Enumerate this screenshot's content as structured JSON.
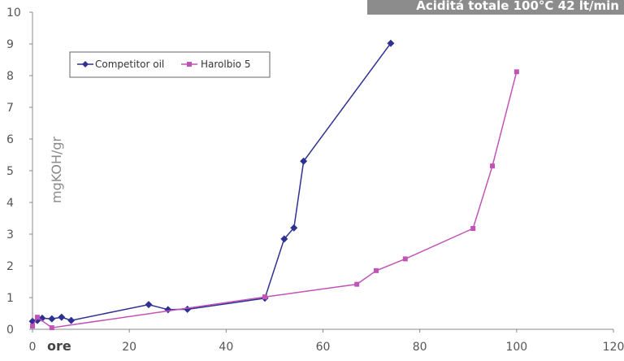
{
  "chart_data": {
    "type": "line",
    "title": "Aciditá totale 100°C 42 lt/min",
    "xlabel": "ore",
    "ylabel": "mgKOH/gr",
    "xlim": [
      0,
      120
    ],
    "ylim": [
      0,
      10
    ],
    "x_ticks": [
      0,
      20,
      40,
      60,
      80,
      100,
      120
    ],
    "y_ticks": [
      0,
      1,
      2,
      3,
      4,
      5,
      6,
      7,
      8,
      9,
      10
    ],
    "grid": false,
    "legend_position": "top-left",
    "series": [
      {
        "name": "Competitor oil",
        "color": "#2e3192",
        "marker": "diamond",
        "points": [
          [
            0,
            0.25
          ],
          [
            1,
            0.28
          ],
          [
            2,
            0.35
          ],
          [
            4,
            0.33
          ],
          [
            6,
            0.38
          ],
          [
            8,
            0.28
          ],
          [
            24,
            0.78
          ],
          [
            28,
            0.62
          ],
          [
            32,
            0.63
          ],
          [
            48,
            0.98
          ],
          [
            52,
            2.85
          ],
          [
            54,
            3.2
          ],
          [
            56,
            5.3
          ],
          [
            74,
            9.02
          ]
        ]
      },
      {
        "name": "Harolbio 5",
        "color": "#c054b6",
        "marker": "square",
        "points": [
          [
            0,
            0.1
          ],
          [
            1,
            0.38
          ],
          [
            4,
            0.05
          ],
          [
            48,
            1.02
          ],
          [
            67,
            1.42
          ],
          [
            71,
            1.85
          ],
          [
            77,
            2.22
          ],
          [
            91,
            3.18
          ],
          [
            95,
            5.15
          ],
          [
            100,
            8.12
          ]
        ]
      }
    ]
  }
}
